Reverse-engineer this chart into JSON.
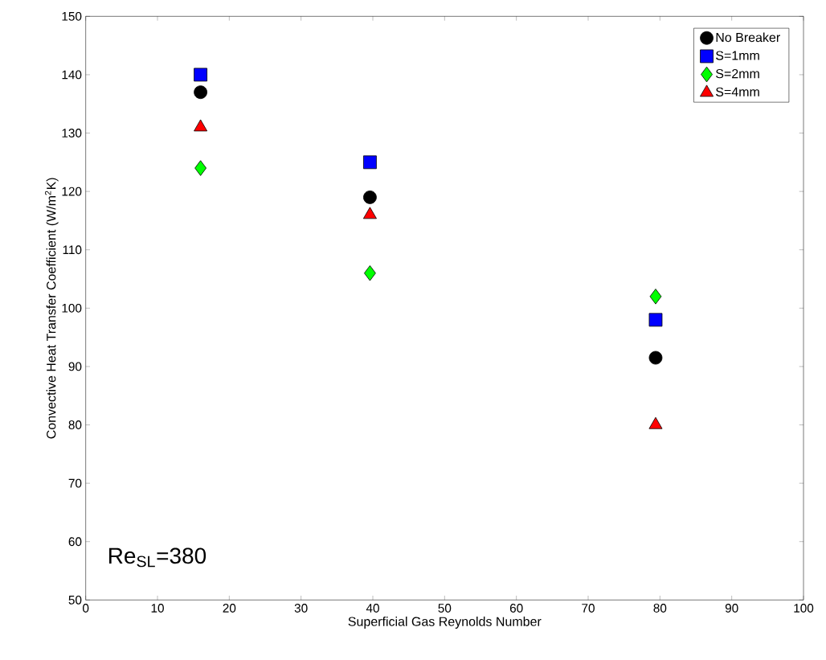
{
  "chart_data": {
    "type": "scatter",
    "xlabel": "Superficial Gas Reynolds Number",
    "ylabel": "Convective Heat Transfer Coefficient (W/m$^{2}$K)",
    "x": [
      16,
      39.6,
      79.4
    ],
    "series": [
      {
        "name": "No Breaker",
        "color": "#000000",
        "marker": "circle",
        "values": [
          137,
          119,
          91.5
        ]
      },
      {
        "name": "S=1mm",
        "color": "#0000ff",
        "marker": "square",
        "values": [
          140,
          125,
          98
        ]
      },
      {
        "name": "S=2mm",
        "color": "#00ff00",
        "marker": "diamond",
        "values": [
          124,
          106,
          102
        ]
      },
      {
        "name": "S=4mm",
        "color": "#ff0000",
        "marker": "triangle",
        "values": [
          131,
          116,
          80
        ]
      }
    ],
    "xlim": [
      0,
      100
    ],
    "ylim": [
      50,
      150
    ],
    "xticks": [
      0,
      10,
      20,
      30,
      40,
      50,
      60,
      70,
      80,
      90,
      100
    ],
    "yticks": [
      50,
      60,
      70,
      80,
      90,
      100,
      110,
      120,
      130,
      140,
      150
    ],
    "grid": false,
    "legend": "top right",
    "annotations": [
      "Re$_{SL}$=380"
    ]
  }
}
